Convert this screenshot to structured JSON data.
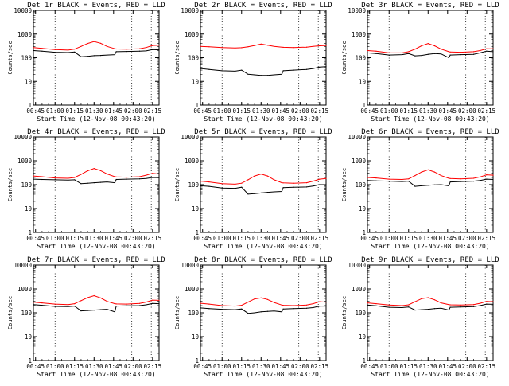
{
  "figure": {
    "xtick_labels": [
      "00:45",
      "01:00",
      "01:15",
      "01:30",
      "01:45",
      "02:00",
      "02:15"
    ],
    "ytick_labels": [
      "1",
      "10",
      "100",
      "1000",
      "10000"
    ],
    "xlabel": "Start Time (12-Nov-08 00:43:20)",
    "ylabel": "Counts/sec",
    "colors": {
      "events": "#000000",
      "lld": "#ff0000",
      "axes": "#000000",
      "background": "#ffffff"
    }
  },
  "chart_data": [
    {
      "type": "line",
      "title": "Det 1r BLACK = Events, RED = LLD",
      "xlabel": "Start Time (12-Nov-08 00:43:20)",
      "ylabel": "Counts/sec",
      "xlim": [
        "00:43:20",
        "02:20"
      ],
      "ylim": [
        1,
        10000
      ],
      "yscale": "log",
      "vlines_dotted": [
        "01:00",
        "01:59",
        "02:14"
      ],
      "series": [
        {
          "color": "#000000",
          "x": [
            "00:43:20",
            "00:50",
            "01:00",
            "01:10",
            "01:15",
            "01:20",
            "01:25",
            "01:30",
            "01:35",
            "01:40",
            "01:46",
            "01:47",
            "01:55",
            "02:05",
            "02:10",
            "02:15",
            "02:20"
          ],
          "values": [
            200,
            190,
            170,
            165,
            175,
            110,
            115,
            122,
            125,
            130,
            135,
            180,
            185,
            190,
            195,
            220,
            215
          ]
        },
        {
          "color": "#ff0000",
          "x": [
            "00:43:20",
            "00:50",
            "01:00",
            "01:10",
            "01:15",
            "01:20",
            "01:25",
            "01:30",
            "01:35",
            "01:40",
            "01:46",
            "01:47",
            "01:55",
            "02:05",
            "02:10",
            "02:15",
            "02:20"
          ],
          "values": [
            270,
            250,
            220,
            210,
            230,
            300,
            400,
            480,
            410,
            300,
            240,
            235,
            230,
            240,
            270,
            330,
            340
          ]
        }
      ]
    },
    {
      "type": "line",
      "title": "Det 2r BLACK = Events, RED = LLD",
      "xlabel": "Start Time (12-Nov-08 00:43:20)",
      "ylabel": "Counts/sec",
      "xlim": [
        "00:43:20",
        "02:20"
      ],
      "ylim": [
        1,
        10000
      ],
      "yscale": "log",
      "vlines_dotted": [
        "01:00",
        "01:59",
        "02:14"
      ],
      "series": [
        {
          "color": "#000000",
          "x": [
            "00:43:20",
            "00:50",
            "01:00",
            "01:10",
            "01:15",
            "01:20",
            "01:25",
            "01:30",
            "01:35",
            "01:40",
            "01:46",
            "01:47",
            "01:55",
            "02:05",
            "02:10",
            "02:15",
            "02:20"
          ],
          "values": [
            35,
            32,
            28,
            27,
            30,
            20,
            19,
            18,
            18,
            19,
            20,
            28,
            30,
            32,
            35,
            40,
            42
          ]
        },
        {
          "color": "#ff0000",
          "x": [
            "00:43:20",
            "00:50",
            "01:00",
            "01:10",
            "01:15",
            "01:20",
            "01:25",
            "01:30",
            "01:35",
            "01:40",
            "01:46",
            "01:47",
            "01:55",
            "02:05",
            "02:10",
            "02:15",
            "02:20"
          ],
          "values": [
            300,
            290,
            270,
            260,
            265,
            290,
            330,
            380,
            340,
            300,
            280,
            275,
            270,
            280,
            300,
            320,
            330
          ]
        }
      ]
    },
    {
      "type": "line",
      "title": "Det 3r BLACK = Events, RED = LLD",
      "xlabel": "Start Time (12-Nov-08 00:43:20)",
      "ylabel": "Counts/sec",
      "xlim": [
        "00:43:20",
        "02:20"
      ],
      "ylim": [
        1,
        10000
      ],
      "yscale": "log",
      "vlines_dotted": [
        "01:00",
        "01:59",
        "02:14"
      ],
      "series": [
        {
          "color": "#000000",
          "x": [
            "00:43:20",
            "00:50",
            "01:00",
            "01:10",
            "01:15",
            "01:20",
            "01:25",
            "01:30",
            "01:35",
            "01:40",
            "01:46",
            "01:47",
            "01:55",
            "02:05",
            "02:10",
            "02:15",
            "02:20"
          ],
          "values": [
            160,
            150,
            130,
            135,
            150,
            120,
            125,
            140,
            150,
            145,
            100,
            130,
            135,
            140,
            160,
            190,
            180
          ]
        },
        {
          "color": "#ff0000",
          "x": [
            "00:43:20",
            "00:50",
            "01:00",
            "01:10",
            "01:15",
            "01:20",
            "01:25",
            "01:30",
            "01:35",
            "01:40",
            "01:46",
            "01:47",
            "01:55",
            "02:05",
            "02:10",
            "02:15",
            "02:20"
          ],
          "values": [
            200,
            190,
            160,
            160,
            180,
            230,
            320,
            400,
            320,
            230,
            180,
            175,
            170,
            180,
            200,
            240,
            240
          ]
        }
      ]
    },
    {
      "type": "line",
      "title": "Det 4r BLACK = Events, RED = LLD",
      "xlabel": "Start Time (12-Nov-08 00:43:20)",
      "ylabel": "Counts/sec",
      "xlim": [
        "00:43:20",
        "02:20"
      ],
      "ylim": [
        1,
        10000
      ],
      "yscale": "log",
      "vlines_dotted": [
        "01:00",
        "01:59",
        "02:14"
      ],
      "series": [
        {
          "color": "#000000",
          "x": [
            "00:43:20",
            "00:50",
            "01:00",
            "01:10",
            "01:15",
            "01:20",
            "01:25",
            "01:30",
            "01:35",
            "01:40",
            "01:46",
            "01:47",
            "01:55",
            "02:05",
            "02:10",
            "02:15",
            "02:20"
          ],
          "values": [
            170,
            165,
            160,
            155,
            160,
            110,
            115,
            120,
            125,
            130,
            120,
            165,
            170,
            175,
            180,
            200,
            195
          ]
        },
        {
          "color": "#ff0000",
          "x": [
            "00:43:20",
            "00:50",
            "01:00",
            "01:10",
            "01:15",
            "01:20",
            "01:25",
            "01:30",
            "01:35",
            "01:40",
            "01:46",
            "01:47",
            "01:55",
            "02:05",
            "02:10",
            "02:15",
            "02:20"
          ],
          "values": [
            230,
            215,
            190,
            185,
            200,
            270,
            380,
            480,
            390,
            280,
            215,
            210,
            205,
            215,
            250,
            300,
            280
          ]
        }
      ]
    },
    {
      "type": "line",
      "title": "Det 5r BLACK = Events, RED = LLD",
      "xlabel": "Start Time (12-Nov-08 00:43:20)",
      "ylabel": "Counts/sec",
      "xlim": [
        "00:43:20",
        "02:20"
      ],
      "ylim": [
        1,
        10000
      ],
      "yscale": "log",
      "vlines_dotted": [
        "01:00",
        "01:59",
        "02:14"
      ],
      "series": [
        {
          "color": "#000000",
          "x": [
            "00:43:20",
            "00:50",
            "01:00",
            "01:10",
            "01:15",
            "01:20",
            "01:25",
            "01:30",
            "01:35",
            "01:40",
            "01:46",
            "01:47",
            "01:55",
            "02:05",
            "02:10",
            "02:15",
            "02:20"
          ],
          "values": [
            90,
            85,
            72,
            70,
            78,
            40,
            42,
            45,
            48,
            50,
            52,
            75,
            78,
            80,
            88,
            100,
            100
          ]
        },
        {
          "color": "#ff0000",
          "x": [
            "00:43:20",
            "00:50",
            "01:00",
            "01:10",
            "01:15",
            "01:20",
            "01:25",
            "01:30",
            "01:35",
            "01:40",
            "01:46",
            "01:47",
            "01:55",
            "02:05",
            "02:10",
            "02:15",
            "02:20"
          ],
          "values": [
            140,
            130,
            110,
            105,
            115,
            160,
            230,
            280,
            230,
            160,
            120,
            118,
            115,
            120,
            140,
            170,
            180
          ]
        }
      ]
    },
    {
      "type": "line",
      "title": "Det 6r BLACK = Events, RED = LLD",
      "xlabel": "Start Time (12-Nov-08 00:43:20)",
      "ylabel": "Counts/sec",
      "xlim": [
        "00:43:20",
        "02:20"
      ],
      "ylim": [
        1,
        10000
      ],
      "yscale": "log",
      "vlines_dotted": [
        "01:00",
        "01:59",
        "02:14"
      ],
      "series": [
        {
          "color": "#000000",
          "x": [
            "00:43:20",
            "00:50",
            "01:00",
            "01:10",
            "01:15",
            "01:20",
            "01:25",
            "01:30",
            "01:35",
            "01:40",
            "01:46",
            "01:47",
            "01:55",
            "02:05",
            "02:10",
            "02:15",
            "02:20"
          ],
          "values": [
            150,
            145,
            140,
            135,
            140,
            85,
            90,
            95,
            98,
            100,
            90,
            130,
            135,
            140,
            150,
            170,
            165
          ]
        },
        {
          "color": "#ff0000",
          "x": [
            "00:43:20",
            "00:50",
            "01:00",
            "01:10",
            "01:15",
            "01:20",
            "01:25",
            "01:30",
            "01:35",
            "01:40",
            "01:46",
            "01:47",
            "01:55",
            "02:05",
            "02:10",
            "02:15",
            "02:20"
          ],
          "values": [
            200,
            190,
            170,
            165,
            175,
            240,
            340,
            420,
            340,
            240,
            185,
            180,
            175,
            185,
            210,
            260,
            250
          ]
        }
      ]
    },
    {
      "type": "line",
      "title": "Det 7r BLACK = Events, RED = LLD",
      "xlabel": "Start Time (12-Nov-08 00:43:20)",
      "ylabel": "Counts/sec",
      "xlim": [
        "00:43:20",
        "02:20"
      ],
      "ylim": [
        1,
        10000
      ],
      "yscale": "log",
      "vlines_dotted": [
        "01:00",
        "01:59",
        "02:14"
      ],
      "series": [
        {
          "color": "#000000",
          "x": [
            "00:43:20",
            "00:50",
            "01:00",
            "01:10",
            "01:15",
            "01:20",
            "01:25",
            "01:30",
            "01:35",
            "01:40",
            "01:46",
            "01:47",
            "01:55",
            "02:05",
            "02:10",
            "02:15",
            "02:20"
          ],
          "values": [
            220,
            205,
            185,
            180,
            190,
            120,
            125,
            130,
            135,
            140,
            110,
            190,
            195,
            200,
            215,
            245,
            240
          ]
        },
        {
          "color": "#ff0000",
          "x": [
            "00:43:20",
            "00:50",
            "01:00",
            "01:10",
            "01:15",
            "01:20",
            "01:25",
            "01:30",
            "01:35",
            "01:40",
            "01:46",
            "01:47",
            "01:55",
            "02:05",
            "02:10",
            "02:15",
            "02:20"
          ],
          "values": [
            280,
            260,
            230,
            220,
            240,
            320,
            430,
            520,
            420,
            300,
            240,
            235,
            230,
            245,
            280,
            340,
            330
          ]
        }
      ]
    },
    {
      "type": "line",
      "title": "Det 8r BLACK = Events, RED = LLD",
      "xlabel": "Start Time (12-Nov-08 00:43:20)",
      "ylabel": "Counts/sec",
      "xlim": [
        "00:43:20",
        "02:20"
      ],
      "ylim": [
        1,
        10000
      ],
      "yscale": "log",
      "vlines_dotted": [
        "01:00",
        "01:59",
        "02:14"
      ],
      "series": [
        {
          "color": "#000000",
          "x": [
            "00:43:20",
            "00:50",
            "01:00",
            "01:10",
            "01:15",
            "01:20",
            "01:25",
            "01:30",
            "01:35",
            "01:40",
            "01:46",
            "01:47",
            "01:55",
            "02:05",
            "02:10",
            "02:15",
            "02:20"
          ],
          "values": [
            160,
            150,
            140,
            135,
            145,
            95,
            100,
            110,
            115,
            118,
            110,
            145,
            150,
            155,
            165,
            190,
            190
          ]
        },
        {
          "color": "#ff0000",
          "x": [
            "00:43:20",
            "00:50",
            "01:00",
            "01:10",
            "01:15",
            "01:20",
            "01:25",
            "01:30",
            "01:35",
            "01:40",
            "01:46",
            "01:47",
            "01:55",
            "02:05",
            "02:10",
            "02:15",
            "02:20"
          ],
          "values": [
            250,
            230,
            200,
            190,
            205,
            280,
            380,
            420,
            360,
            270,
            210,
            205,
            200,
            210,
            240,
            290,
            280
          ]
        }
      ]
    },
    {
      "type": "line",
      "title": "Det 9r BLACK = Events, RED = LLD",
      "xlabel": "Start Time (12-Nov-08 00:43:20)",
      "ylabel": "Counts/sec",
      "xlim": [
        "00:43:20",
        "02:20"
      ],
      "ylim": [
        1,
        10000
      ],
      "yscale": "log",
      "vlines_dotted": [
        "01:00",
        "01:59",
        "02:14"
      ],
      "series": [
        {
          "color": "#000000",
          "x": [
            "00:43:20",
            "00:50",
            "01:00",
            "01:10",
            "01:15",
            "01:20",
            "01:25",
            "01:30",
            "01:35",
            "01:40",
            "01:46",
            "01:47",
            "01:55",
            "02:05",
            "02:10",
            "02:15",
            "02:20"
          ],
          "values": [
            210,
            195,
            170,
            165,
            175,
            130,
            135,
            140,
            150,
            155,
            130,
            170,
            175,
            180,
            200,
            230,
            225
          ]
        },
        {
          "color": "#ff0000",
          "x": [
            "00:43:20",
            "00:50",
            "01:00",
            "01:10",
            "01:15",
            "01:20",
            "01:25",
            "01:30",
            "01:35",
            "01:40",
            "01:46",
            "01:47",
            "01:55",
            "02:05",
            "02:10",
            "02:15",
            "02:20"
          ],
          "values": [
            260,
            240,
            210,
            200,
            215,
            290,
            390,
            430,
            350,
            260,
            220,
            215,
            210,
            220,
            250,
            300,
            290
          ]
        }
      ]
    }
  ]
}
